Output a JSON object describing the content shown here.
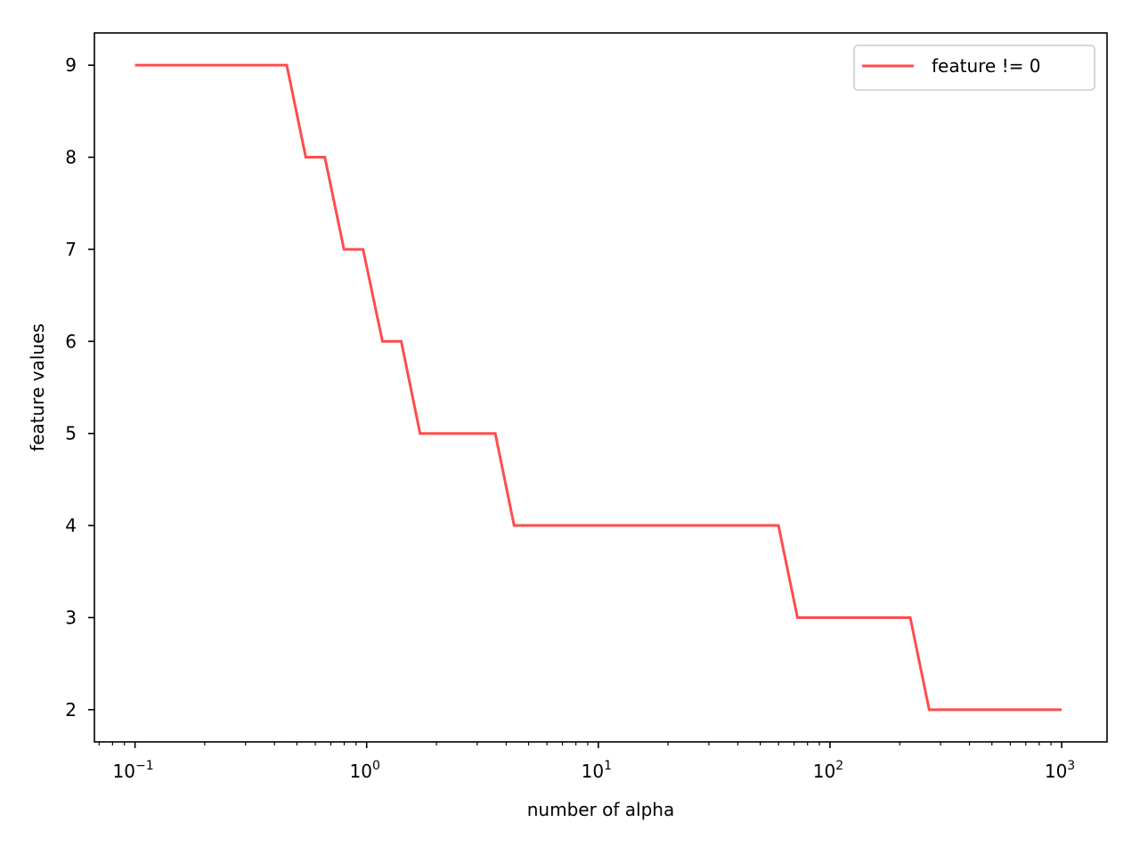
{
  "chart_data": {
    "type": "line",
    "title": "",
    "xlabel": "number of alpha",
    "ylabel": "feature values",
    "xscale": "log",
    "xlim": [
      0.0668,
      1570
    ],
    "ylim": [
      1.65,
      9.35
    ],
    "grid": false,
    "legend": {
      "position": "top-right",
      "entries": [
        "feature != 0"
      ]
    },
    "x_ticks": [
      {
        "value": 0.1,
        "base": "10",
        "exp": "−1"
      },
      {
        "value": 1,
        "base": "10",
        "exp": "0"
      },
      {
        "value": 10,
        "base": "10",
        "exp": "1"
      },
      {
        "value": 100,
        "base": "10",
        "exp": "2"
      },
      {
        "value": 1000,
        "base": "10",
        "exp": "3"
      }
    ],
    "y_ticks": [
      {
        "value": 2,
        "label": "2"
      },
      {
        "value": 3,
        "label": "3"
      },
      {
        "value": 4,
        "label": "4"
      },
      {
        "value": 5,
        "label": "5"
      },
      {
        "value": 6,
        "label": "6"
      },
      {
        "value": 7,
        "label": "7"
      },
      {
        "value": 8,
        "label": "8"
      },
      {
        "value": 9,
        "label": "9"
      }
    ],
    "series": [
      {
        "name": "feature != 0",
        "color": "#ff4c4c",
        "x": [
          0.1,
          0.452,
          0.546,
          0.66,
          0.798,
          0.965,
          1.17,
          1.41,
          1.7,
          3.59,
          4.33,
          59.9,
          72.4,
          222,
          268,
          1000
        ],
        "y": [
          9,
          9,
          8,
          8,
          7,
          7,
          6,
          6,
          5,
          5,
          4,
          4,
          3,
          3,
          2,
          2
        ]
      }
    ]
  }
}
